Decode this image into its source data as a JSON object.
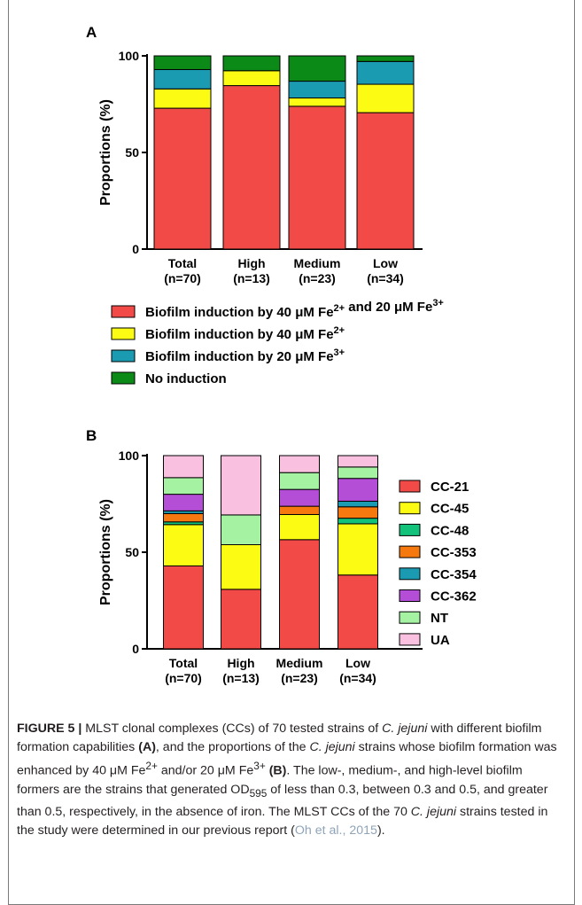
{
  "chart_data": [
    {
      "type": "bar",
      "panel_label": "A",
      "stacked": true,
      "ylabel": "Proportions (%)",
      "ylim": [
        0,
        100
      ],
      "yticks": [
        "0",
        "50",
        "100"
      ],
      "categories": [
        {
          "line1": "Total",
          "line2": "(n=70)"
        },
        {
          "line1": "High",
          "line2": "(n=13)"
        },
        {
          "line1": "Medium",
          "line2": "(n=23)"
        },
        {
          "line1": "Low",
          "line2": "(n=34)"
        }
      ],
      "legend_position": "bottom",
      "series": [
        {
          "name": "Biofilm induction by 40 μM Fe2+ and 20 μM Fe3+",
          "legend_parts": [
            "Biofilm induction by 40 ",
            "μ",
            "M Fe",
            "2+",
            " and 20 ",
            "μ",
            "M Fe",
            "3+"
          ],
          "color": "#f14a47",
          "values": [
            72.9,
            84.6,
            73.9,
            70.6
          ]
        },
        {
          "name": "Biofilm induction by 40 μM Fe2+",
          "legend_parts": [
            "Biofilm induction by 40 ",
            "μ",
            "M Fe",
            "2+"
          ],
          "color": "#fbfb13",
          "values": [
            10.0,
            7.7,
            4.3,
            14.7
          ]
        },
        {
          "name": "Biofilm induction by 20 μM Fe3+",
          "legend_parts": [
            "Biofilm induction by 20 ",
            "μ",
            "M Fe",
            "3+"
          ],
          "color": "#1b9bb2",
          "values": [
            10.0,
            0,
            8.7,
            11.8
          ]
        },
        {
          "name": "No induction",
          "legend_parts": [
            "No induction"
          ],
          "color": "#0c8a17",
          "values": [
            7.1,
            7.7,
            13.1,
            2.9
          ]
        }
      ]
    },
    {
      "type": "bar",
      "panel_label": "B",
      "stacked": true,
      "ylabel": "Proportions (%)",
      "ylim": [
        0,
        100
      ],
      "yticks": [
        "0",
        "50",
        "100"
      ],
      "categories": [
        {
          "line1": "Total",
          "line2": "(n=70)"
        },
        {
          "line1": "High",
          "line2": "(n=13)"
        },
        {
          "line1": "Medium",
          "line2": "(n=23)"
        },
        {
          "line1": "Low",
          "line2": "(n=34)"
        }
      ],
      "legend_position": "right",
      "series": [
        {
          "name": "CC-21",
          "color": "#f14a47",
          "values": [
            42.9,
            30.8,
            56.5,
            38.2
          ]
        },
        {
          "name": "CC-45",
          "color": "#fbfb13",
          "values": [
            21.4,
            23.1,
            13.0,
            26.5
          ]
        },
        {
          "name": "CC-48",
          "color": "#12c27b",
          "values": [
            1.4,
            0,
            0,
            2.9
          ]
        },
        {
          "name": "CC-353",
          "color": "#f5790e",
          "values": [
            4.3,
            0,
            4.3,
            5.9
          ]
        },
        {
          "name": "CC-354",
          "color": "#1b9bb2",
          "values": [
            1.4,
            0,
            0,
            2.9
          ]
        },
        {
          "name": "CC-362",
          "color": "#b54ed6",
          "values": [
            8.6,
            0,
            8.7,
            11.8
          ]
        },
        {
          "name": "NT",
          "color": "#a4f2a2",
          "values": [
            8.6,
            15.4,
            8.7,
            5.9
          ]
        },
        {
          "name": "UA",
          "color": "#f9c1df",
          "values": [
            11.4,
            30.7,
            8.8,
            5.9
          ]
        }
      ]
    }
  ],
  "caption": {
    "label": "FIGURE 5 |",
    "t1": " MLST clonal complexes (CCs) of 70 tested strains of ",
    "t2": "C. jejuni",
    "t3": " with different biofilm formation capabilities ",
    "t4": "(A)",
    "t5": ", and the proportions of the ",
    "t6": "C. jejuni",
    "t7": " strains whose biofilm formation was enhanced by 40 μM Fe",
    "t8": "2+",
    "t9": " and/or 20 μM Fe",
    "t10": "3+",
    "t11": " ",
    "t12": "(B)",
    "t13": ". The low-, medium-, and high-level biofilm formers are the strains that generated OD",
    "t14": "595",
    "t15": " of less than 0.3, between 0.3 and 0.5, and greater than 0.5, respectively, in the absence of iron. The MLST CCs of the 70 ",
    "t16": "C. jejuni",
    "t17": " strains tested in the study were determined in our previous report (",
    "t18": "Oh et al., 2015",
    "t19": ")."
  }
}
